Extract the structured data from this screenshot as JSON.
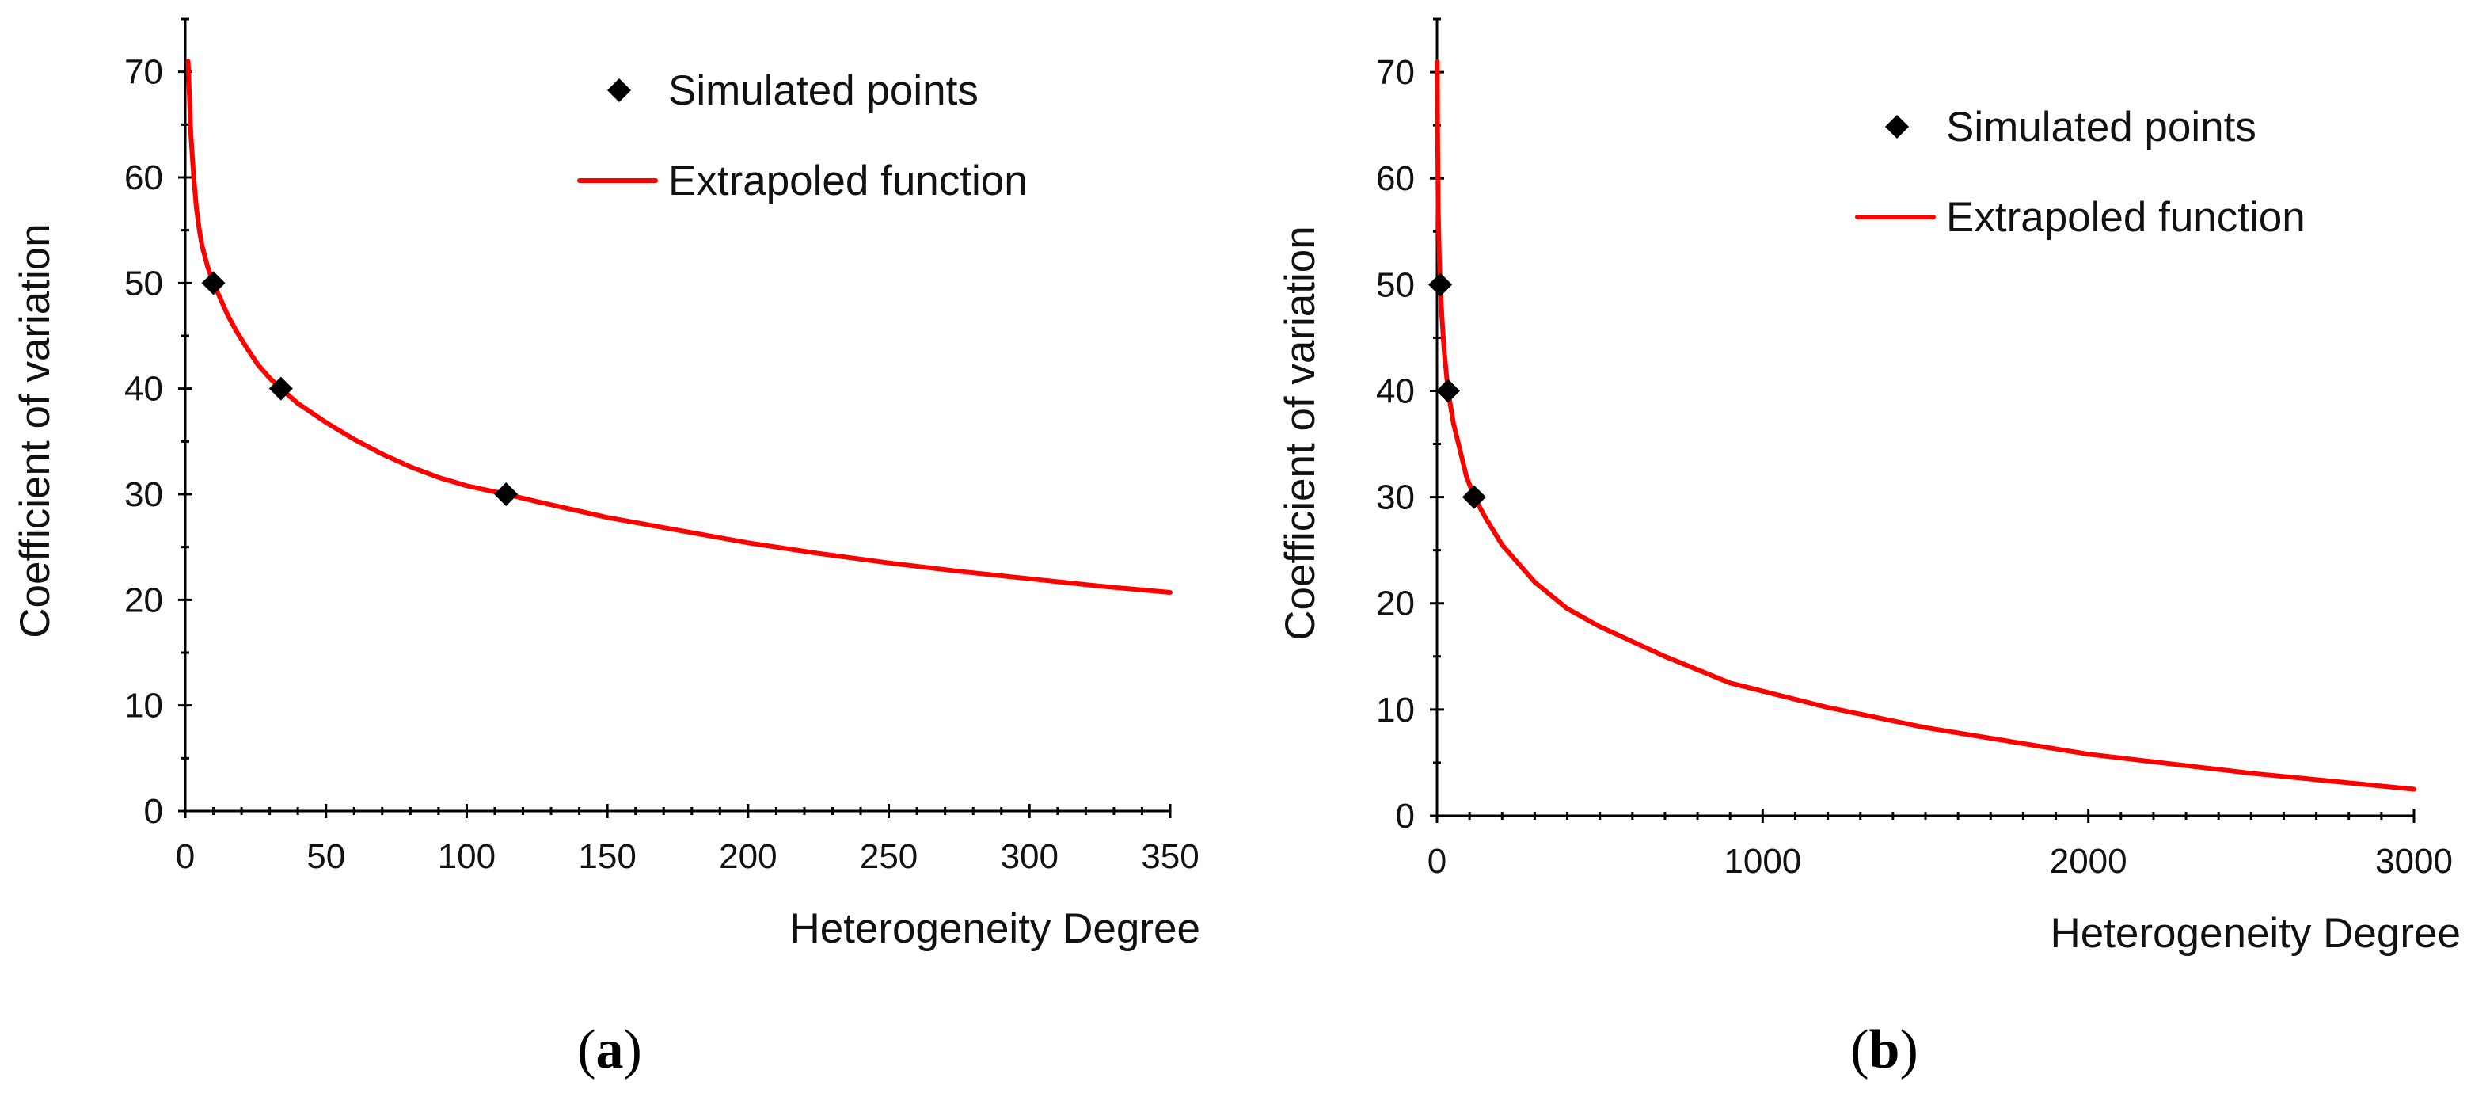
{
  "chart_data": [
    {
      "type": "scatter",
      "panel_id": "a",
      "caption": {
        "open": "(",
        "letter": "a",
        "close": ")"
      },
      "xlabel": "Heterogeneity Degree",
      "ylabel": "Coefficient of variation",
      "xlim": [
        0,
        350
      ],
      "ylim": [
        0,
        75
      ],
      "xticks": [
        0,
        50,
        100,
        150,
        200,
        250,
        300,
        350
      ],
      "yticks": [
        0,
        10,
        20,
        30,
        40,
        50,
        60,
        70
      ],
      "x_minor_step": 10,
      "y_minor_step": 5,
      "legend": {
        "position": "top-right",
        "points_label": "Simulated points",
        "line_label": "Extrapoled function"
      },
      "series": [
        {
          "name": "Simulated points",
          "kind": "points",
          "color": "#000000",
          "x": [
            10,
            34,
            114
          ],
          "y": [
            50,
            40,
            30
          ]
        },
        {
          "name": "Extrapoled function",
          "kind": "line",
          "color": "#ff0000",
          "x": [
            1,
            2,
            3,
            4,
            5,
            6,
            8,
            10,
            12,
            15,
            18,
            22,
            26,
            30,
            34,
            40,
            50,
            60,
            70,
            80,
            90,
            100,
            114,
            125,
            150,
            175,
            200,
            225,
            250,
            275,
            300,
            325,
            350
          ],
          "y": [
            71,
            64,
            60,
            57,
            55,
            53.5,
            51.5,
            50,
            48.8,
            47,
            45.5,
            43.8,
            42.2,
            41,
            40,
            38.6,
            36.8,
            35.2,
            33.8,
            32.6,
            31.6,
            30.8,
            30,
            29.3,
            27.8,
            26.6,
            25.4,
            24.4,
            23.5,
            22.7,
            22,
            21.3,
            20.7
          ]
        }
      ]
    },
    {
      "type": "scatter",
      "panel_id": "b",
      "caption": {
        "open": "(",
        "letter": "b",
        "close": ")"
      },
      "xlabel": "Heterogeneity Degree",
      "ylabel": "Coefficient of variation",
      "xlim": [
        0,
        3000
      ],
      "ylim": [
        0,
        75
      ],
      "xticks": [
        0,
        1000,
        2000,
        3000
      ],
      "yticks": [
        0,
        10,
        20,
        30,
        40,
        50,
        60,
        70
      ],
      "x_minor_step": 100,
      "y_minor_step": 5,
      "legend": {
        "position": "top-right",
        "points_label": "Simulated points",
        "line_label": "Extrapoled function"
      },
      "series": [
        {
          "name": "Simulated points",
          "kind": "points",
          "color": "#000000",
          "x": [
            10,
            34,
            114
          ],
          "y": [
            50,
            40,
            30
          ]
        },
        {
          "name": "Extrapoled function",
          "kind": "line",
          "color": "#ff0000",
          "x": [
            1,
            2,
            4,
            7,
            10,
            15,
            22,
            34,
            50,
            70,
            90,
            114,
            150,
            200,
            300,
            400,
            500,
            700,
            900,
            1200,
            1500,
            2000,
            2500,
            3000
          ],
          "y": [
            71,
            64,
            57,
            52.5,
            50,
            47,
            43.8,
            40,
            37,
            34.5,
            32,
            30,
            28,
            25.5,
            22,
            19.5,
            17.8,
            15,
            12.5,
            10.2,
            8.3,
            5.8,
            4,
            2.5
          ]
        }
      ]
    }
  ]
}
